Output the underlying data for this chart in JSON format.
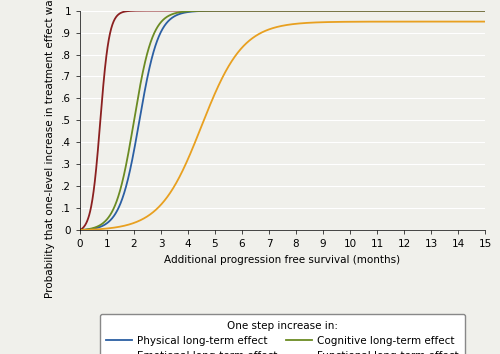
{
  "title": "",
  "xlabel": "Additional progression free survival (months)",
  "ylabel": "Probability that one-level increase in treatment effect was accepted",
  "xlim": [
    0,
    15
  ],
  "ylim": [
    0,
    1
  ],
  "xticks": [
    0,
    1,
    2,
    3,
    4,
    5,
    6,
    7,
    8,
    9,
    10,
    11,
    12,
    13,
    14,
    15
  ],
  "yticks": [
    0,
    0.1,
    0.2,
    0.3,
    0.4,
    0.5,
    0.6,
    0.7,
    0.8,
    0.9,
    1.0
  ],
  "ytick_labels": [
    "0",
    ".1",
    ".2",
    ".3",
    ".4",
    ".5",
    ".6",
    ".7",
    ".8",
    ".9",
    "1"
  ],
  "legend_title": "One step increase in:",
  "curves": [
    {
      "label": "Physical long-term effect",
      "color": "#2B5FA3",
      "k": 2.8,
      "x0": 2.2
    },
    {
      "label": "Emotional long-term effect",
      "color": "#8B2020",
      "k": 6.0,
      "x0": 0.75
    },
    {
      "label": "Cognitive long-term effect",
      "color": "#6B8B23",
      "k": 2.9,
      "x0": 2.0
    },
    {
      "label": "Functional long-term effect",
      "color": "#E8A020",
      "k": 1.3,
      "x0": 4.5,
      "asymptote": 0.95
    }
  ],
  "background_color": "#f0f0eb",
  "grid_color": "#ffffff",
  "font_size": 7.5
}
